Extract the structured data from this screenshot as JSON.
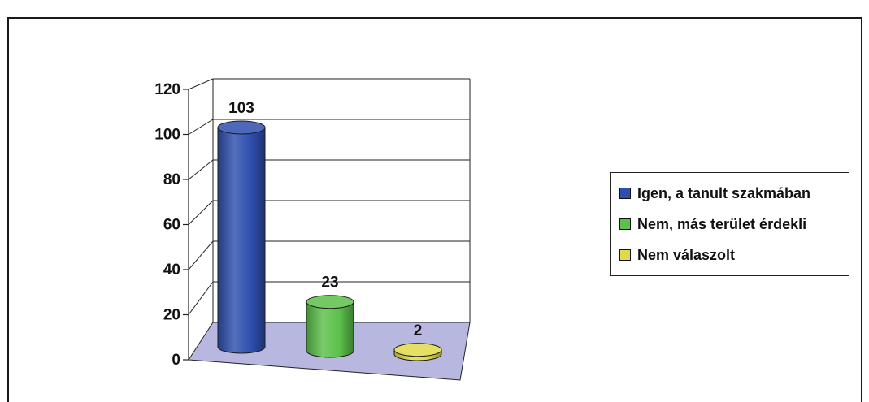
{
  "chart_data": {
    "type": "bar",
    "style": "3d-cylinder",
    "categories": [
      "Igen, a tanult szakmában",
      "Nem, más terület érdekli",
      "Nem válaszolt"
    ],
    "values": [
      103,
      23,
      2
    ],
    "colors": [
      "#2f4faf",
      "#5cc04a",
      "#e0d94a"
    ],
    "ylim": [
      0,
      120
    ],
    "yticks": [
      "0",
      "20",
      "40",
      "60",
      "80",
      "100",
      "120"
    ],
    "grid": true,
    "legend_position": "right"
  },
  "legend": {
    "items": [
      {
        "label": "Igen, a tanult szakmában",
        "color": "#2f4faf"
      },
      {
        "label": "Nem, más terület érdekli",
        "color": "#5cc04a"
      },
      {
        "label": "Nem válaszolt",
        "color": "#e0d94a"
      }
    ]
  },
  "colors": {
    "floor": "#b7b7e0",
    "grid": "#222222"
  }
}
